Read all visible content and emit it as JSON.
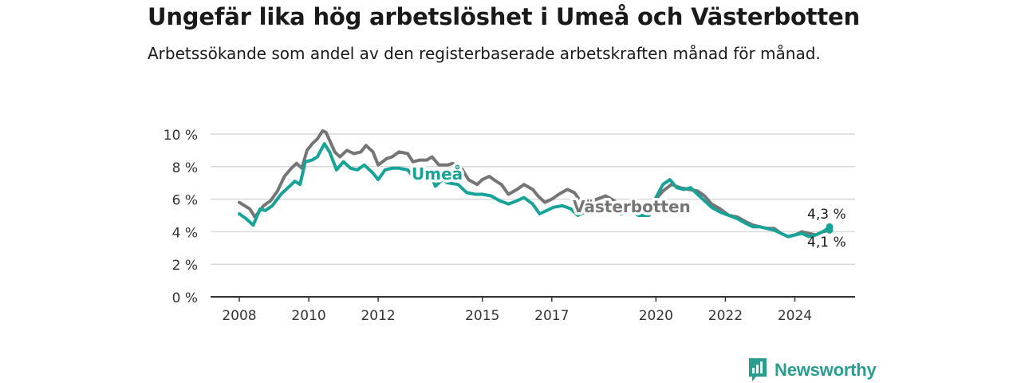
{
  "title": "Ungefär lika hög arbetslöshet i Umeå och Västerbotten",
  "subtitle": "Arbetssökande som andel av den registerbaserade arbetskraften månad för månad.",
  "brand": {
    "name": "Newsworthy",
    "icon": "newsworthy-logo-icon"
  },
  "colors": {
    "umea": "#17a398",
    "vasterbotten": "#757575",
    "grid": "#d9d9d9",
    "axis": "#333333"
  },
  "chart_data": {
    "type": "line",
    "title": "Ungefär lika hög arbetslöshet i Umeå och Västerbotten",
    "subtitle": "Arbetssökande som andel av den registerbaserade arbetskraften månad för månad.",
    "xlabel": "",
    "ylabel": "",
    "x_range": [
      2008,
      2025.0
    ],
    "ylim": [
      0,
      10
    ],
    "y_ticks": [
      0,
      2,
      4,
      6,
      8,
      10
    ],
    "y_tick_labels": [
      "0 %",
      "2 %",
      "4 %",
      "6 %",
      "8 %",
      "10 %"
    ],
    "x_ticks": [
      2008,
      2010,
      2012,
      2015,
      2017,
      2020,
      2022,
      2024
    ],
    "x_tick_labels": [
      "2008",
      "2010",
      "2012",
      "2015",
      "2017",
      "2020",
      "2022",
      "2024"
    ],
    "grid": true,
    "series": [
      {
        "name": "Västerbotten",
        "end_label": "4,1 %",
        "points": [
          [
            2008.0,
            5.8
          ],
          [
            2008.3,
            5.4
          ],
          [
            2008.45,
            4.9
          ],
          [
            2008.7,
            5.6
          ],
          [
            2008.9,
            5.9
          ],
          [
            2009.1,
            6.5
          ],
          [
            2009.3,
            7.4
          ],
          [
            2009.5,
            7.9
          ],
          [
            2009.65,
            8.2
          ],
          [
            2009.8,
            7.9
          ],
          [
            2009.95,
            9.0
          ],
          [
            2010.1,
            9.4
          ],
          [
            2010.25,
            9.7
          ],
          [
            2010.4,
            10.2
          ],
          [
            2010.5,
            10.1
          ],
          [
            2010.75,
            8.9
          ],
          [
            2010.9,
            8.6
          ],
          [
            2011.1,
            9.0
          ],
          [
            2011.3,
            8.8
          ],
          [
            2011.5,
            8.9
          ],
          [
            2011.65,
            9.3
          ],
          [
            2011.85,
            8.9
          ],
          [
            2012.0,
            8.1
          ],
          [
            2012.25,
            8.5
          ],
          [
            2012.4,
            8.6
          ],
          [
            2012.6,
            8.9
          ],
          [
            2012.85,
            8.8
          ],
          [
            2013.0,
            8.3
          ],
          [
            2013.2,
            8.4
          ],
          [
            2013.4,
            8.4
          ],
          [
            2013.55,
            8.6
          ],
          [
            2013.75,
            8.1
          ],
          [
            2014.0,
            8.1
          ],
          [
            2014.15,
            8.2
          ],
          [
            2014.4,
            7.9
          ],
          [
            2014.6,
            7.2
          ],
          [
            2014.85,
            6.9
          ],
          [
            2015.0,
            7.2
          ],
          [
            2015.2,
            7.4
          ],
          [
            2015.4,
            7.1
          ],
          [
            2015.55,
            6.9
          ],
          [
            2015.75,
            6.3
          ],
          [
            2016.0,
            6.6
          ],
          [
            2016.2,
            6.9
          ],
          [
            2016.45,
            6.6
          ],
          [
            2016.6,
            6.2
          ],
          [
            2016.8,
            5.8
          ],
          [
            2017.0,
            6.0
          ],
          [
            2017.2,
            6.3
          ],
          [
            2017.45,
            6.6
          ],
          [
            2017.65,
            6.4
          ],
          [
            2017.85,
            5.8
          ],
          [
            2018.0,
            5.7
          ],
          [
            2018.3,
            6.0
          ],
          [
            2018.55,
            6.2
          ],
          [
            2018.8,
            5.9
          ],
          [
            2019.0,
            5.6
          ],
          [
            2019.25,
            5.8
          ],
          [
            2019.5,
            5.4
          ],
          [
            2019.75,
            5.1
          ],
          [
            2020.0,
            6.0
          ],
          [
            2020.2,
            6.5
          ],
          [
            2020.45,
            6.9
          ],
          [
            2020.7,
            6.7
          ],
          [
            2020.95,
            6.6
          ],
          [
            2021.2,
            6.5
          ],
          [
            2021.4,
            6.2
          ],
          [
            2021.6,
            5.7
          ],
          [
            2021.85,
            5.4
          ],
          [
            2022.1,
            5.0
          ],
          [
            2022.35,
            4.9
          ],
          [
            2022.6,
            4.6
          ],
          [
            2022.8,
            4.4
          ],
          [
            2023.0,
            4.3
          ],
          [
            2023.2,
            4.2
          ],
          [
            2023.4,
            4.2
          ],
          [
            2023.6,
            3.9
          ],
          [
            2023.8,
            3.7
          ],
          [
            2024.0,
            3.8
          ],
          [
            2024.2,
            4.0
          ],
          [
            2024.4,
            3.9
          ],
          [
            2024.6,
            3.8
          ],
          [
            2024.8,
            4.0
          ],
          [
            2025.0,
            4.1
          ]
        ]
      },
      {
        "name": "Umeå",
        "end_label": "4,3 %",
        "points": [
          [
            2008.0,
            5.1
          ],
          [
            2008.2,
            4.8
          ],
          [
            2008.4,
            4.4
          ],
          [
            2008.6,
            5.4
          ],
          [
            2008.75,
            5.3
          ],
          [
            2008.95,
            5.6
          ],
          [
            2009.2,
            6.3
          ],
          [
            2009.4,
            6.7
          ],
          [
            2009.6,
            7.1
          ],
          [
            2009.75,
            6.9
          ],
          [
            2009.9,
            8.3
          ],
          [
            2010.1,
            8.4
          ],
          [
            2010.25,
            8.6
          ],
          [
            2010.45,
            9.4
          ],
          [
            2010.6,
            8.9
          ],
          [
            2010.8,
            7.8
          ],
          [
            2011.0,
            8.3
          ],
          [
            2011.2,
            7.9
          ],
          [
            2011.4,
            7.8
          ],
          [
            2011.6,
            8.1
          ],
          [
            2011.85,
            7.6
          ],
          [
            2012.0,
            7.2
          ],
          [
            2012.2,
            7.8
          ],
          [
            2012.4,
            7.9
          ],
          [
            2012.6,
            7.9
          ],
          [
            2012.85,
            7.8
          ],
          [
            2013.0,
            7.4
          ],
          [
            2013.25,
            7.7
          ],
          [
            2013.5,
            7.5
          ],
          [
            2013.65,
            6.8
          ],
          [
            2013.85,
            7.2
          ],
          [
            2014.0,
            7.0
          ],
          [
            2014.3,
            6.9
          ],
          [
            2014.55,
            6.4
          ],
          [
            2014.8,
            6.3
          ],
          [
            2015.0,
            6.3
          ],
          [
            2015.25,
            6.2
          ],
          [
            2015.5,
            5.9
          ],
          [
            2015.75,
            5.7
          ],
          [
            2016.0,
            5.9
          ],
          [
            2016.2,
            6.1
          ],
          [
            2016.45,
            5.7
          ],
          [
            2016.65,
            5.1
          ],
          [
            2016.85,
            5.3
          ],
          [
            2017.05,
            5.5
          ],
          [
            2017.3,
            5.6
          ],
          [
            2017.55,
            5.4
          ],
          [
            2017.75,
            5.0
          ],
          [
            2017.95,
            5.2
          ],
          [
            2018.2,
            5.5
          ],
          [
            2018.5,
            5.6
          ],
          [
            2018.8,
            5.3
          ],
          [
            2019.0,
            5.1
          ],
          [
            2019.25,
            5.3
          ],
          [
            2019.5,
            5.0
          ],
          [
            2019.8,
            5.0
          ],
          [
            2020.0,
            6.1
          ],
          [
            2020.2,
            6.9
          ],
          [
            2020.4,
            7.2
          ],
          [
            2020.6,
            6.7
          ],
          [
            2020.8,
            6.6
          ],
          [
            2021.0,
            6.7
          ],
          [
            2021.2,
            6.3
          ],
          [
            2021.4,
            5.9
          ],
          [
            2021.6,
            5.5
          ],
          [
            2021.85,
            5.2
          ],
          [
            2022.1,
            5.0
          ],
          [
            2022.35,
            4.8
          ],
          [
            2022.6,
            4.5
          ],
          [
            2022.8,
            4.3
          ],
          [
            2023.0,
            4.3
          ],
          [
            2023.2,
            4.2
          ],
          [
            2023.4,
            4.1
          ],
          [
            2023.6,
            3.9
          ],
          [
            2023.8,
            3.7
          ],
          [
            2024.0,
            3.8
          ],
          [
            2024.2,
            3.9
          ],
          [
            2024.4,
            3.7
          ],
          [
            2024.6,
            3.8
          ],
          [
            2024.8,
            4.0
          ],
          [
            2024.95,
            4.2
          ],
          [
            2025.0,
            4.3
          ]
        ]
      }
    ],
    "inline_labels": [
      "Umeå",
      "Västerbotten"
    ]
  }
}
